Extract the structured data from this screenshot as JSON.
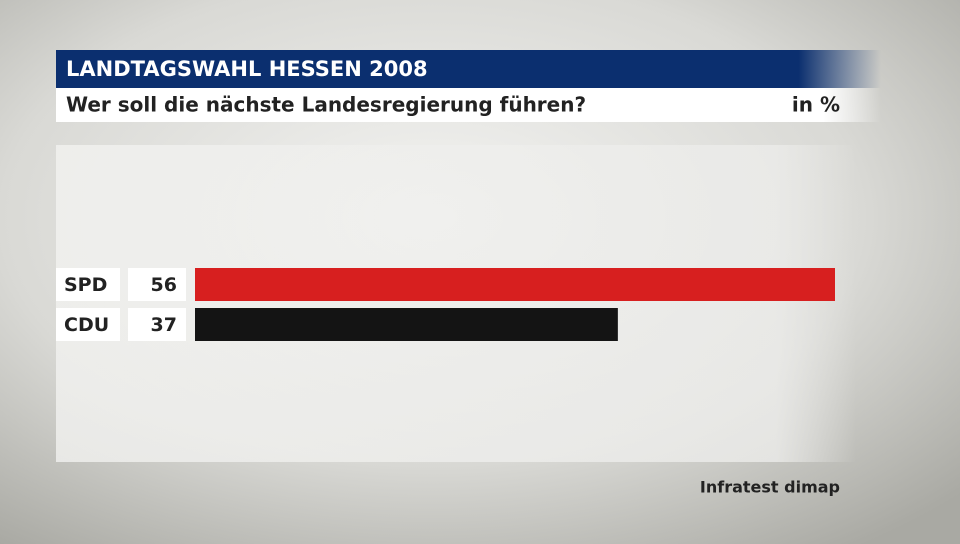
{
  "chart_data": {
    "type": "bar",
    "orientation": "horizontal",
    "title": "LANDTAGSWAHL HESSEN 2008",
    "subtitle": "Wer soll die nächste Landesregierung führen?",
    "unit": "in %",
    "source": "Infratest dimap",
    "categories": [
      "SPD",
      "CDU"
    ],
    "values": [
      56,
      37
    ],
    "colors": [
      "#d71f1f",
      "#141414"
    ]
  }
}
